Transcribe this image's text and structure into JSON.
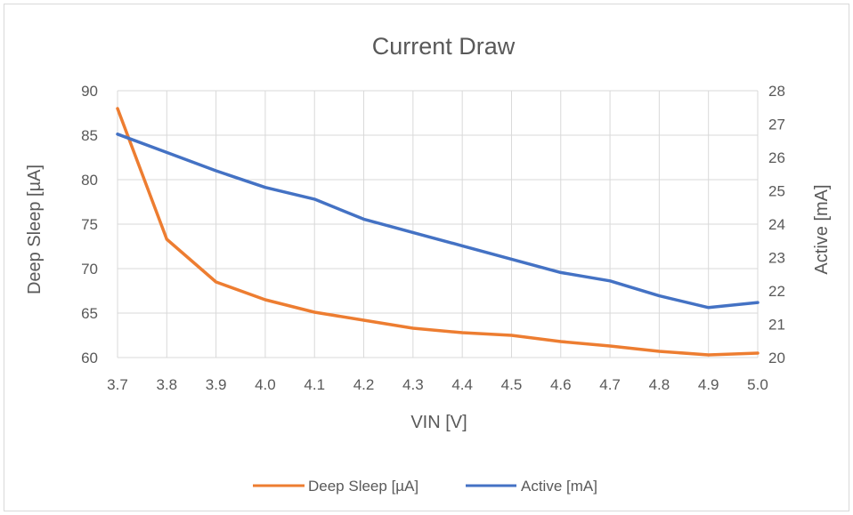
{
  "chart_data": {
    "type": "line",
    "title": "Current Draw",
    "xlabel": "VIN [V]",
    "ylabel": "Deep Sleep [µA]",
    "y2label": "Active [mA]",
    "categories": [
      "3.7",
      "3.8",
      "3.9",
      "4.0",
      "4.1",
      "4.2",
      "4.3",
      "4.4",
      "4.5",
      "4.6",
      "4.7",
      "4.8",
      "4.9",
      "5.0"
    ],
    "ylim": [
      60,
      90
    ],
    "yticks": [
      60,
      65,
      70,
      75,
      80,
      85,
      90
    ],
    "y2lim": [
      20,
      28
    ],
    "y2ticks": [
      20,
      21,
      22,
      23,
      24,
      25,
      26,
      27,
      28
    ],
    "grid": true,
    "legend_position": "bottom",
    "series": [
      {
        "name": "Deep Sleep [µA]",
        "axis": "left",
        "color": "#ed7d31",
        "values": [
          88.0,
          73.3,
          68.5,
          66.5,
          65.1,
          64.2,
          63.3,
          62.8,
          62.5,
          61.8,
          61.3,
          60.7,
          60.3,
          60.5
        ]
      },
      {
        "name": "Active [mA]",
        "axis": "right",
        "color": "#4472c4",
        "values": [
          26.7,
          26.15,
          25.6,
          25.1,
          24.75,
          24.15,
          23.75,
          23.35,
          22.95,
          22.55,
          22.3,
          21.85,
          21.5,
          21.65
        ]
      }
    ]
  }
}
